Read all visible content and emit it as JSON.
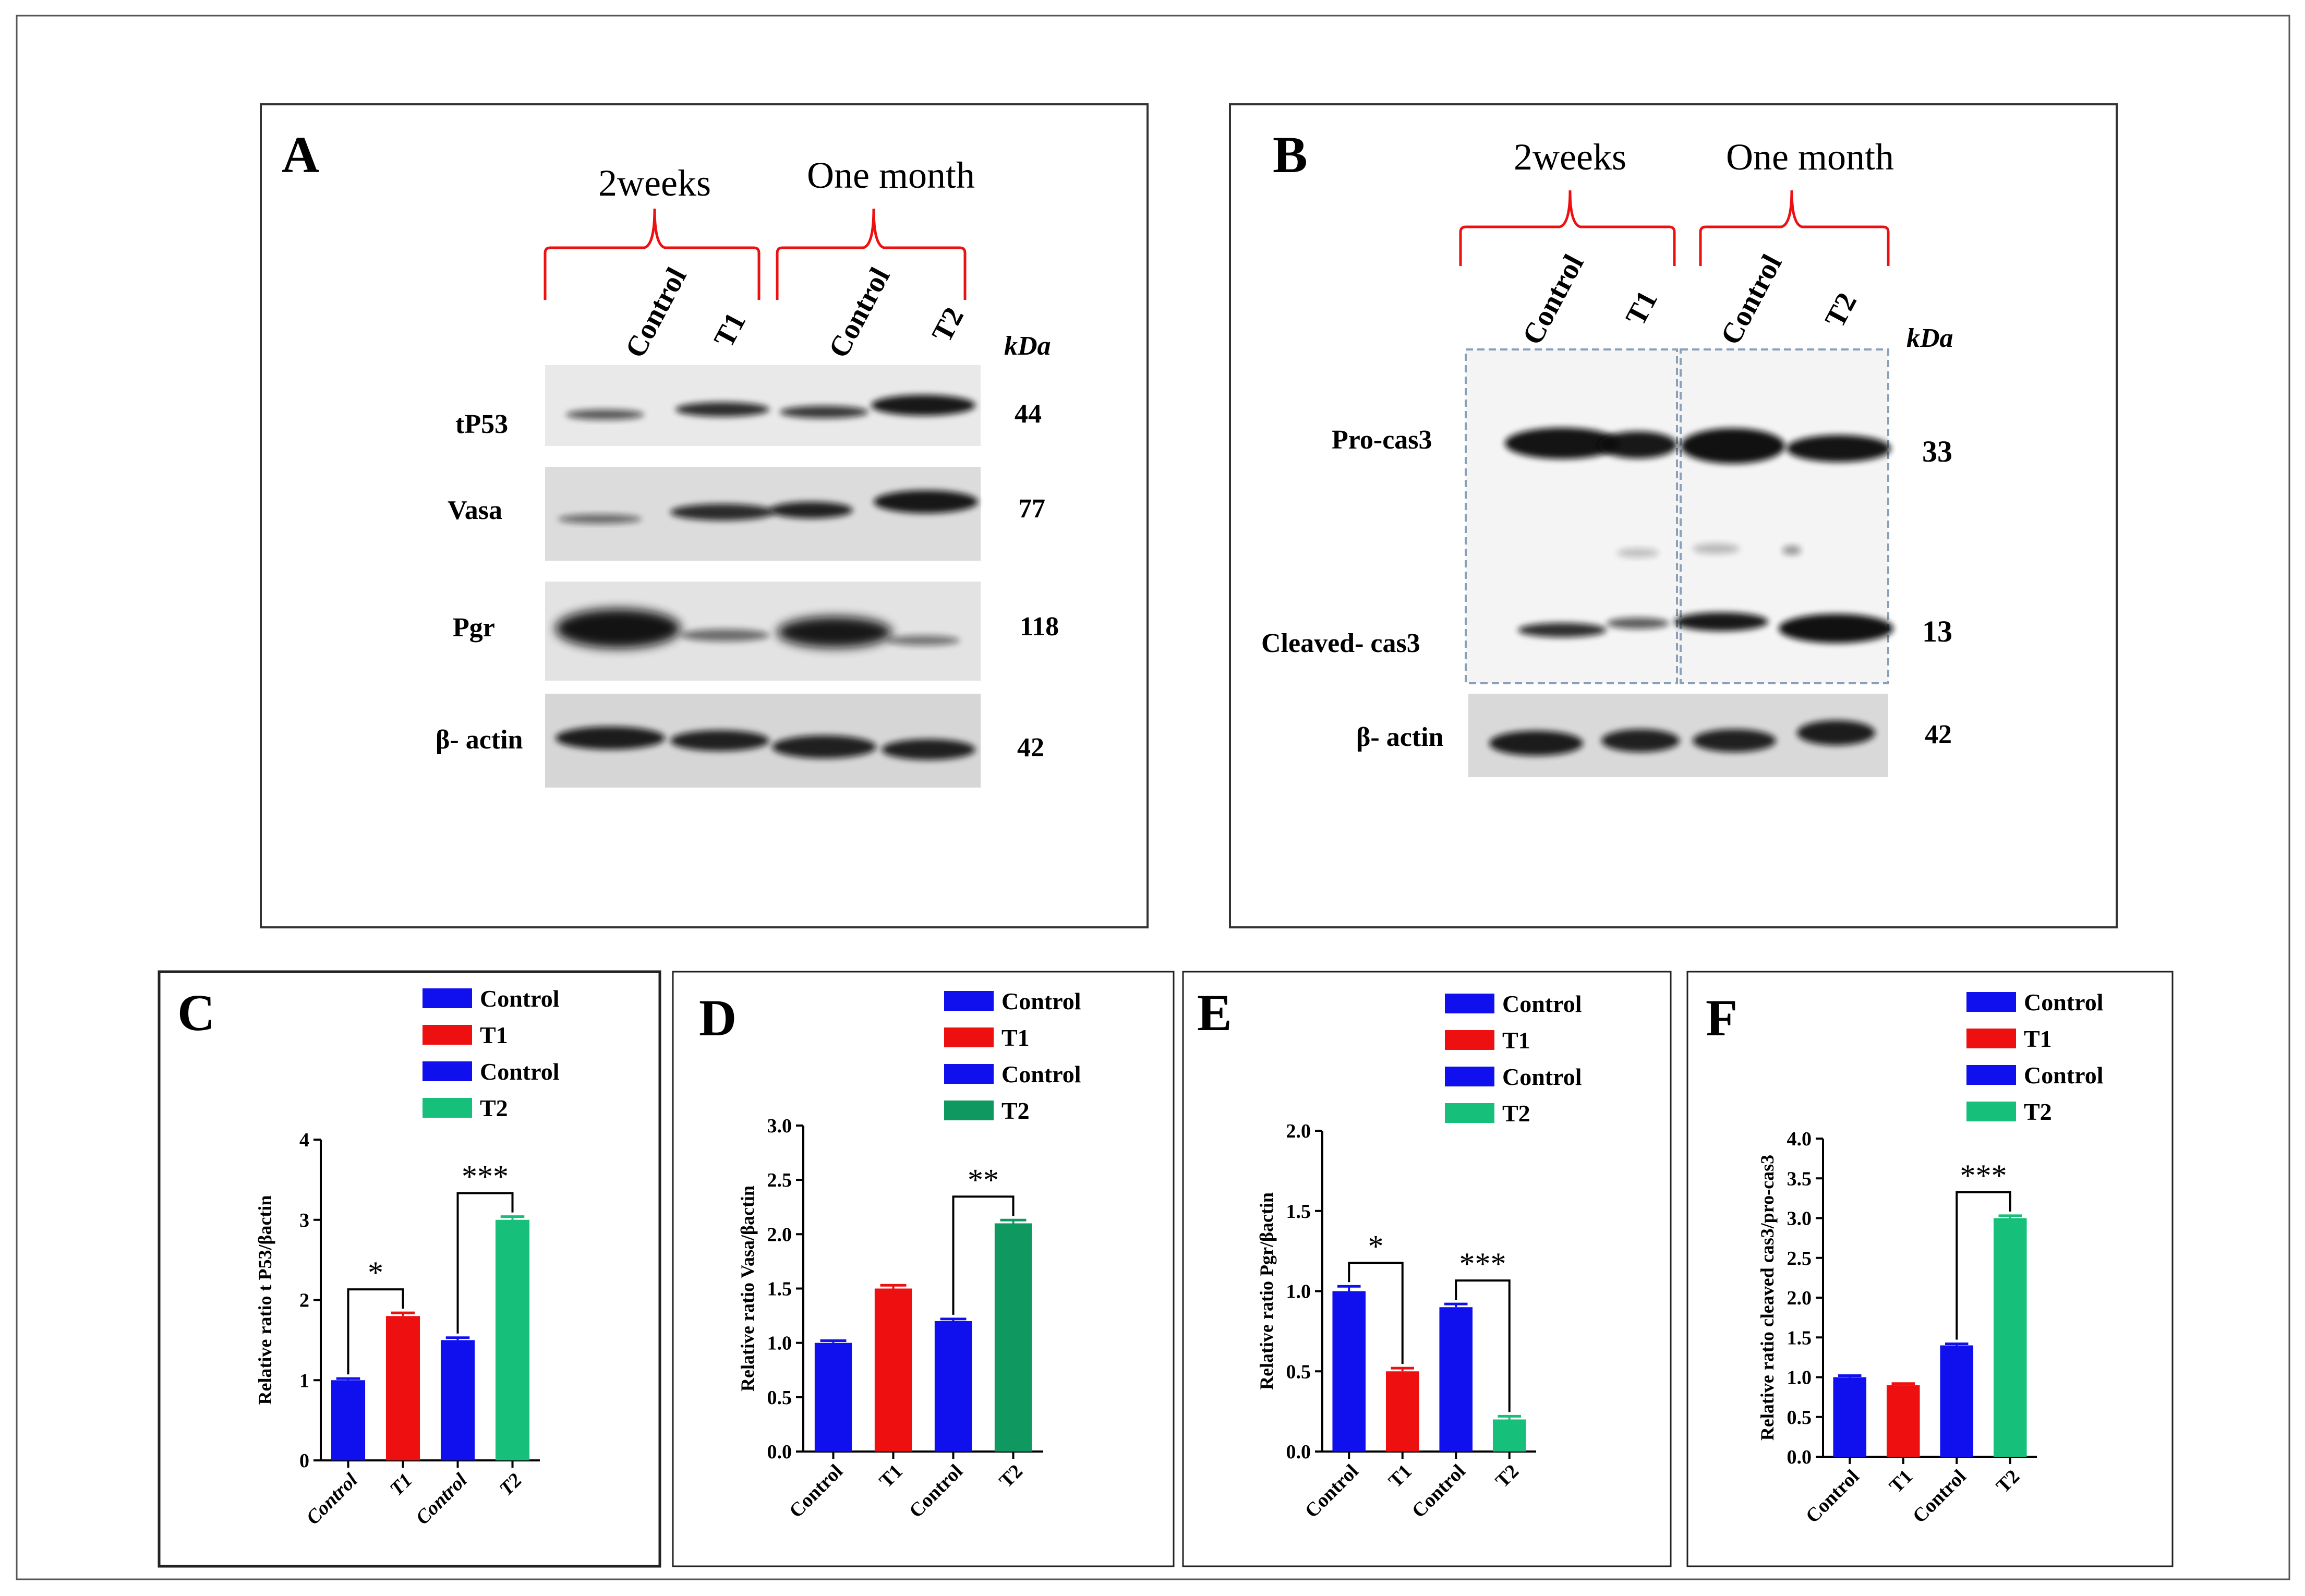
{
  "panel_a": {
    "letter": "A",
    "groups": [
      "2weeks",
      "One month"
    ],
    "lanes": [
      "Control",
      "T1",
      "Control",
      "T2"
    ],
    "kda_label": "kDa",
    "blots": [
      {
        "protein": "tP53",
        "kda": "44"
      },
      {
        "protein": "Vasa",
        "kda": "77"
      },
      {
        "protein": "Pgr",
        "kda": "118"
      },
      {
        "protein": "β- actin",
        "kda": "42"
      }
    ]
  },
  "panel_b": {
    "letter": "B",
    "groups": [
      "2weeks",
      "One month"
    ],
    "lanes": [
      "Control",
      "T1",
      "Control",
      "T2"
    ],
    "kda_label": "kDa",
    "blots": [
      {
        "protein": "Pro-cas3",
        "kda": "33"
      },
      {
        "protein": "Cleaved- cas3",
        "kda": "13"
      },
      {
        "protein": "β- actin",
        "kda": "42"
      }
    ]
  },
  "chart_data": [
    {
      "panel": "C",
      "type": "bar",
      "categories": [
        "Control",
        "T1",
        "Control",
        "T2"
      ],
      "values": [
        1.0,
        1.8,
        1.5,
        3.0
      ],
      "errors": [
        0.02,
        0.04,
        0.03,
        0.04
      ],
      "colors": [
        "#1010ee",
        "#ee1010",
        "#1010ee",
        "#17c07a"
      ],
      "legend": [
        "Control",
        "T1",
        "Control",
        "T2"
      ],
      "ylabel": "Relative ratio t P53/βactin",
      "ylim": [
        0,
        4
      ],
      "yticks": [
        "0",
        "1",
        "2",
        "3",
        "4"
      ],
      "sig": [
        {
          "from": 0,
          "to": 1,
          "label": "*"
        },
        {
          "from": 2,
          "to": 3,
          "label": "***"
        }
      ]
    },
    {
      "panel": "D",
      "type": "bar",
      "categories": [
        "Control",
        "T1",
        "Control",
        "T2"
      ],
      "values": [
        1.0,
        1.5,
        1.2,
        2.1
      ],
      "errors": [
        0.02,
        0.03,
        0.02,
        0.03
      ],
      "colors": [
        "#1010ee",
        "#ee1010",
        "#1010ee",
        "#0f9960"
      ],
      "legend": [
        "Control",
        "T1",
        "Control",
        "T2"
      ],
      "ylabel": "Relative ratio Vasa/βactin",
      "ylim": [
        0,
        3.0
      ],
      "yticks": [
        "0.0",
        "0.5",
        "1.0",
        "1.5",
        "2.0",
        "2.5",
        "3.0"
      ],
      "sig": [
        {
          "from": 2,
          "to": 3,
          "label": "**"
        }
      ]
    },
    {
      "panel": "E",
      "type": "bar",
      "categories": [
        "Control",
        "T1",
        "Control",
        "T2"
      ],
      "values": [
        1.0,
        0.5,
        0.9,
        0.2
      ],
      "errors": [
        0.03,
        0.02,
        0.02,
        0.02
      ],
      "colors": [
        "#1010ee",
        "#ee1010",
        "#1010ee",
        "#17c07a"
      ],
      "legend": [
        "Control",
        "T1",
        "Control",
        "T2"
      ],
      "ylabel": "Relative ratio Pgr/βactin",
      "ylim": [
        0,
        2.0
      ],
      "yticks": [
        "0.0",
        "0.5",
        "1.0",
        "1.5",
        "2.0"
      ],
      "sig": [
        {
          "from": 0,
          "to": 1,
          "label": "*"
        },
        {
          "from": 2,
          "to": 3,
          "label": "***"
        }
      ]
    },
    {
      "panel": "F",
      "type": "bar",
      "categories": [
        "Control",
        "T1",
        "Control",
        "T2"
      ],
      "values": [
        1.0,
        0.9,
        1.4,
        3.0
      ],
      "errors": [
        0.02,
        0.02,
        0.02,
        0.03
      ],
      "colors": [
        "#1010ee",
        "#ee1010",
        "#1010ee",
        "#17c07a"
      ],
      "legend": [
        "Control",
        "T1",
        "Control",
        "T2"
      ],
      "ylabel": "Relative ratio cleaved cas3/pro-cas3",
      "ylim": [
        0,
        4.0
      ],
      "yticks": [
        "0.0",
        "0.5",
        "1.0",
        "1.5",
        "2.0",
        "2.5",
        "3.0",
        "3.5",
        "4.0"
      ],
      "sig": [
        {
          "from": 2,
          "to": 3,
          "label": "***"
        }
      ]
    }
  ]
}
